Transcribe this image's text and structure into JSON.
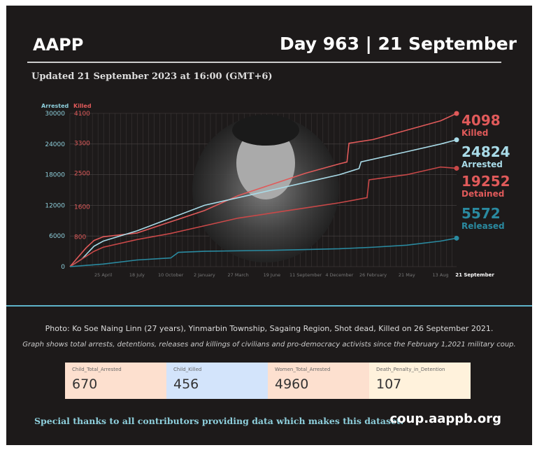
{
  "header": {
    "brand": "AAPP",
    "day": "Day 963 | 21 September",
    "updated": "Updated 21 September 2023 at 16:00 (GMT+6)"
  },
  "chart_data": {
    "type": "line",
    "left_axis_label": "Arrested",
    "right_axis_label": "Killed",
    "left_ticks": [
      "30000",
      "24000",
      "18000",
      "12000",
      "6000",
      "0"
    ],
    "right_ticks": [
      "4100",
      "3300",
      "2500",
      "1600",
      "800"
    ],
    "left_ylim": [
      0,
      30000
    ],
    "right_ylim": [
      0,
      4100
    ],
    "xlim": [
      0,
      963
    ],
    "x_ticks": [
      {
        "day": 83,
        "label": "25 April"
      },
      {
        "day": 167,
        "label": "18 July"
      },
      {
        "day": 251,
        "label": "10 October"
      },
      {
        "day": 335,
        "label": "2 January"
      },
      {
        "day": 419,
        "label": "27 March"
      },
      {
        "day": 503,
        "label": "19 June"
      },
      {
        "day": 587,
        "label": "11 September"
      },
      {
        "day": 671,
        "label": "4 December"
      },
      {
        "day": 755,
        "label": "26 February"
      },
      {
        "day": 839,
        "label": "21 May"
      },
      {
        "day": 923,
        "label": "13 Aug"
      },
      {
        "day": 963,
        "label": "21 September"
      }
    ],
    "series": [
      {
        "name": "Killed",
        "axis": "right",
        "color": "#e05a5a",
        "final": "4098",
        "x": [
          0,
          40,
          60,
          83,
          167,
          251,
          335,
          419,
          503,
          587,
          671,
          690,
          695,
          755,
          839,
          923,
          963
        ],
        "y": [
          0,
          500,
          700,
          800,
          900,
          1200,
          1500,
          1900,
          2200,
          2500,
          2750,
          2800,
          3300,
          3400,
          3650,
          3900,
          4098
        ]
      },
      {
        "name": "Arrested",
        "axis": "left",
        "color": "#a9dbe8",
        "final": "24824",
        "x": [
          0,
          30,
          60,
          83,
          167,
          251,
          335,
          419,
          503,
          587,
          671,
          720,
          725,
          839,
          923,
          963
        ],
        "y": [
          0,
          1500,
          4000,
          5000,
          7000,
          9500,
          12000,
          13500,
          15000,
          16500,
          18000,
          19200,
          20500,
          22500,
          24000,
          24824
        ]
      },
      {
        "name": "Detained",
        "axis": "left",
        "color": "#c94848",
        "final": "19252",
        "x": [
          0,
          60,
          83,
          167,
          251,
          335,
          419,
          503,
          587,
          671,
          740,
          745,
          839,
          923,
          963
        ],
        "y": [
          0,
          3000,
          3800,
          5300,
          6500,
          8000,
          9500,
          10500,
          11500,
          12500,
          13500,
          17000,
          18000,
          19500,
          19252
        ]
      },
      {
        "name": "Released",
        "axis": "left",
        "color": "#2a8aa0",
        "final": "5572",
        "x": [
          0,
          83,
          167,
          251,
          270,
          335,
          503,
          671,
          755,
          839,
          923,
          963
        ],
        "y": [
          0,
          500,
          1300,
          1700,
          2800,
          3000,
          3200,
          3500,
          3800,
          4200,
          5000,
          5572
        ]
      }
    ]
  },
  "caption": {
    "photo": "Photo: Ko Soe Naing Linn (27 years), Yinmarbin Township, Sagaing Region, Shot dead, Killed on 26 September 2021.",
    "note": "Graph shows total arrests, detentions, releases and killings of civilians and pro-democracy activists since the February 1,2021 military coup."
  },
  "stats": [
    {
      "label": "Child_Total_Arrested",
      "value": "670",
      "color": "#fde0cf"
    },
    {
      "label": "Child_Killed",
      "value": "456",
      "color": "#d3e4fb"
    },
    {
      "label": "Women_Total_Arrested",
      "value": "4960",
      "color": "#fde0cf"
    },
    {
      "label": "Death_Penalty_in_Detention",
      "value": "107",
      "color": "#fff2dc"
    }
  ],
  "footer": {
    "thanks": "Special thanks to all contributors providing data which makes this dataset.",
    "site": "coup.aappb.org"
  }
}
